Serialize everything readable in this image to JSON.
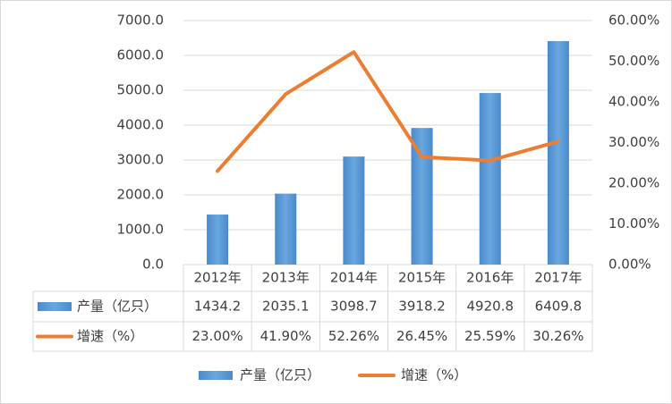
{
  "chart_data": {
    "type": "bar_line_table",
    "categories": [
      "2012年",
      "2013年",
      "2014年",
      "2015年",
      "2016年",
      "2017年"
    ],
    "series": [
      {
        "name": "产量（亿只）",
        "color": "#5b9bd5",
        "type": "bar",
        "values": [
          1434.2,
          2035.1,
          3098.7,
          3918.2,
          4920.8,
          6409.8
        ]
      },
      {
        "name": "增速（%）",
        "color": "#ed7d31",
        "type": "line",
        "axis": "y2",
        "values": [
          23.0,
          41.9,
          52.26,
          26.45,
          25.59,
          30.26
        ],
        "value_labels": [
          "23.00%",
          "41.90%",
          "52.26%",
          "26.45%",
          "25.59%",
          "30.26%"
        ]
      }
    ],
    "ylim": [
      0,
      7000
    ],
    "yticks": [
      {
        "value": 0,
        "label": "0.0"
      },
      {
        "value": 1000,
        "label": "1000.0"
      },
      {
        "value": 2000,
        "label": "2000.0"
      },
      {
        "value": 3000,
        "label": "3000.0"
      },
      {
        "value": 4000,
        "label": "4000.0"
      },
      {
        "value": 5000,
        "label": "5000.0"
      },
      {
        "value": 6000,
        "label": "6000.0"
      },
      {
        "value": 7000,
        "label": "7000.0"
      }
    ],
    "y2lim": [
      0,
      60
    ],
    "y2ticks": [
      {
        "value": 0,
        "label": "0.00%"
      },
      {
        "value": 10,
        "label": "10.00%"
      },
      {
        "value": 20,
        "label": "20.00%"
      },
      {
        "value": 30,
        "label": "30.00%"
      },
      {
        "value": 40,
        "label": "40.00%"
      },
      {
        "value": 50,
        "label": "50.00%"
      },
      {
        "value": 60,
        "label": "60.00%"
      }
    ],
    "grid": true,
    "legend": "bottom",
    "data_table": true
  }
}
